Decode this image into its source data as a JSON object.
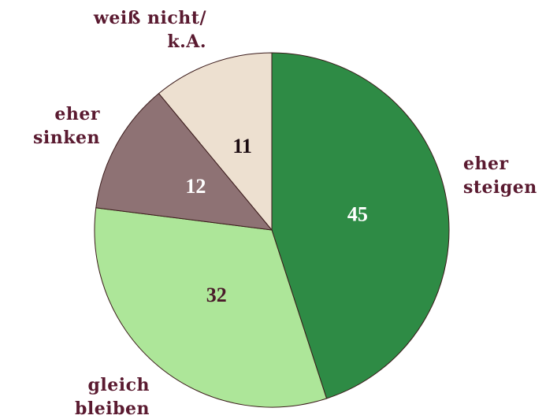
{
  "chart_data": {
    "type": "pie",
    "categories": [
      "eher\nsteigen",
      "gleich\nbleiben",
      "eher\nsinken",
      "weiß nicht/\nk.A."
    ],
    "values": [
      45,
      32,
      12,
      11
    ],
    "colors": [
      "#2e8b45",
      "#ade699",
      "#8e7274",
      "#ede0d0"
    ],
    "label_colors": [
      "#ffffff",
      "#4a1a2a",
      "#ffffff",
      "#1a0a10"
    ]
  }
}
